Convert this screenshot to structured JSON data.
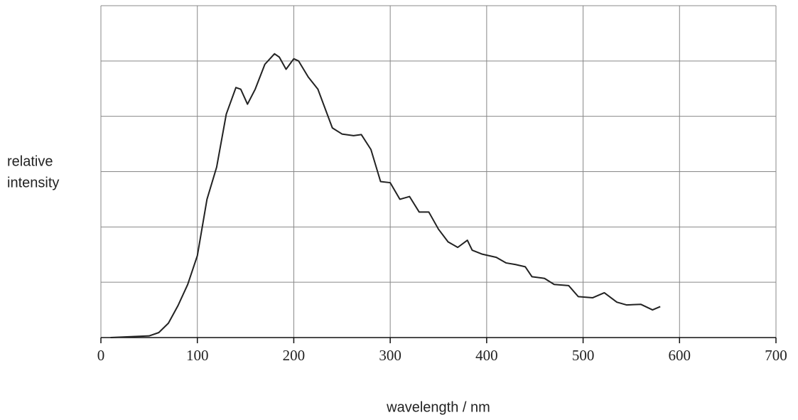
{
  "chart_data": {
    "type": "line",
    "xlabel": "wavelength / nm",
    "ylabel": [
      "relative",
      "intensity"
    ],
    "x": [
      10,
      50,
      60,
      70,
      80,
      90,
      100,
      110,
      120,
      130,
      140,
      145,
      152,
      160,
      170,
      180,
      185,
      192,
      200,
      205,
      215,
      225,
      240,
      250,
      262,
      270,
      280,
      290,
      300,
      310,
      320,
      330,
      340,
      350,
      360,
      370,
      380,
      385,
      395,
      410,
      420,
      430,
      440,
      447,
      460,
      470,
      485,
      495,
      510,
      522,
      535,
      545,
      560,
      572,
      580
    ],
    "series": [
      {
        "color": "#222222",
        "values": [
          0,
          0.03,
          0.09,
          0.26,
          0.58,
          0.96,
          1.48,
          2.5,
          3.08,
          4.04,
          4.52,
          4.49,
          4.22,
          4.49,
          4.94,
          5.13,
          5.07,
          4.85,
          5.04,
          5.0,
          4.71,
          4.49,
          3.79,
          3.68,
          3.65,
          3.67,
          3.4,
          2.82,
          2.8,
          2.5,
          2.55,
          2.27,
          2.27,
          1.96,
          1.73,
          1.63,
          1.76,
          1.58,
          1.51,
          1.45,
          1.35,
          1.32,
          1.28,
          1.1,
          1.07,
          0.96,
          0.94,
          0.74,
          0.72,
          0.81,
          0.64,
          0.59,
          0.6,
          0.5,
          0.56
        ]
      }
    ],
    "xlim": [
      0,
      700
    ],
    "xticks": [
      0,
      100,
      200,
      300,
      400,
      500,
      600,
      700
    ],
    "ylim": [
      0,
      6
    ],
    "yticks": [
      0,
      1,
      2,
      3,
      4,
      5,
      6
    ],
    "ytick_labels_shown": false,
    "grid": true
  }
}
